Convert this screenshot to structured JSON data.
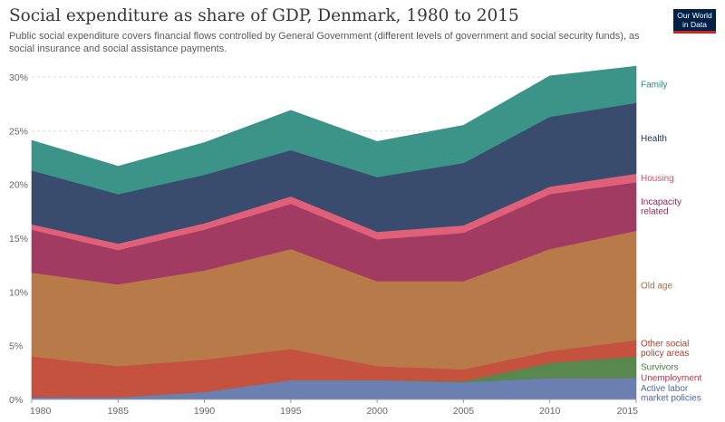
{
  "header": {
    "title": "Social expenditure as share of GDP, Denmark, 1980 to 2015",
    "subtitle": "Public social expenditure covers financial flows controlled by General Government (different levels of government and social security funds), as social insurance and social assistance payments.",
    "logo_line1": "Our World",
    "logo_line2": "in Data"
  },
  "chart_data": {
    "type": "area",
    "stacked": true,
    "x": [
      1980,
      1985,
      1990,
      1995,
      2000,
      2005,
      2010,
      2015
    ],
    "xlim": [
      1980,
      2015
    ],
    "ylim": [
      0,
      30
    ],
    "y_ticks": [
      "0%",
      "5%",
      "10%",
      "15%",
      "20%",
      "25%",
      "30%"
    ],
    "x_ticks": [
      "1980",
      "1985",
      "1990",
      "1995",
      "2000",
      "2005",
      "2010",
      "2015"
    ],
    "grid": "horizontal dashed",
    "legend": "right, labels at series end",
    "series": [
      {
        "name": "Active labor market policies",
        "label_lines": [
          "Active labor",
          "market policies"
        ],
        "color": "#6b7fb0",
        "values": [
          0.2,
          0.2,
          0.7,
          1.8,
          1.8,
          1.6,
          2.0,
          2.0
        ]
      },
      {
        "name": "Unemployment",
        "label_lines": [
          "Unemployment"
        ],
        "color": "#c2455c",
        "values": [
          0.1,
          0.0,
          0.0,
          0.0,
          0.0,
          0.0,
          0.0,
          0.0
        ]
      },
      {
        "name": "Survivors",
        "label_lines": [
          "Survivors"
        ],
        "color": "#58884d",
        "values": [
          0.0,
          0.0,
          0.0,
          0.0,
          0.0,
          0.1,
          1.4,
          2.0
        ]
      },
      {
        "name": "Other social policy areas",
        "label_lines": [
          "Other social",
          "policy areas"
        ],
        "color": "#c4523e",
        "values": [
          3.7,
          2.9,
          3.0,
          2.9,
          1.3,
          1.1,
          1.1,
          1.5
        ]
      },
      {
        "name": "Old age",
        "label_lines": [
          "Old age"
        ],
        "color": "#b97a4a",
        "values": [
          7.8,
          7.6,
          8.3,
          9.3,
          7.9,
          8.2,
          9.5,
          10.2
        ]
      },
      {
        "name": "Incapacity related",
        "label_lines": [
          "Incapacity",
          "related"
        ],
        "color": "#a23b62",
        "values": [
          4.0,
          3.2,
          3.8,
          4.2,
          3.9,
          4.5,
          5.1,
          4.5
        ]
      },
      {
        "name": "Housing",
        "label_lines": [
          "Housing"
        ],
        "color": "#e0607a",
        "values": [
          0.5,
          0.6,
          0.6,
          0.7,
          0.7,
          0.7,
          0.7,
          0.8
        ]
      },
      {
        "name": "Health",
        "label_lines": [
          "Health"
        ],
        "color": "#3a4c6e",
        "values": [
          5.0,
          4.6,
          4.5,
          4.3,
          5.1,
          5.8,
          6.5,
          6.6
        ]
      },
      {
        "name": "Family",
        "label_lines": [
          "Family"
        ],
        "color": "#3b9487",
        "values": [
          2.8,
          2.6,
          3.0,
          3.7,
          3.3,
          3.5,
          3.8,
          3.4
        ]
      }
    ],
    "label_colors": {
      "Family": "#2d8a7e",
      "Health": "#1f2f55",
      "Housing": "#d9506c",
      "Incapacity related": "#962a57",
      "Old age": "#b06a36",
      "Other social policy areas": "#b83b2a",
      "Survivors": "#4a7c3d",
      "Unemployment": "#b8364f",
      "Active labor market policies": "#5066a3"
    }
  }
}
